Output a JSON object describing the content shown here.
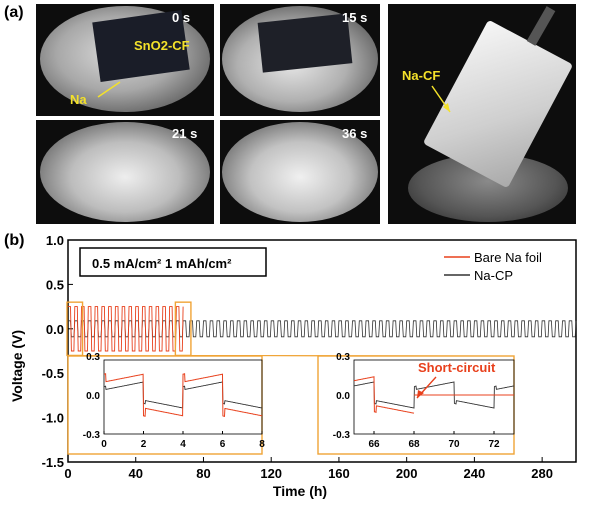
{
  "panel_a": {
    "label": "(a)",
    "photos": [
      {
        "time": "0 s",
        "annotations": [
          "SnO2-CF",
          "Na"
        ]
      },
      {
        "time": "15 s"
      },
      {
        "time": "21 s"
      },
      {
        "time": "36 s"
      },
      {
        "time": "",
        "annotations": [
          "Na-CF"
        ]
      }
    ]
  },
  "panel_b": {
    "label": "(b)",
    "conditions": "0.5 mA/cm²  1 mAh/cm²",
    "inset_annotation": "Short-circuit"
  },
  "colors": {
    "bare": "#e8401c",
    "nacp": "#333333",
    "highlight": "#f0a436"
  },
  "chart_data": {
    "type": "line",
    "xlabel": "Time (h)",
    "ylabel": "Voltage (V)",
    "xlim": [
      0,
      300
    ],
    "ylim": [
      -1.5,
      1.0
    ],
    "xticks": [
      "0",
      "40",
      "80",
      "120",
      "160",
      "200",
      "240",
      "280"
    ],
    "yticks": [
      "1.0",
      "0.5",
      "0.0",
      "-0.5",
      "-1.0",
      "-1.5"
    ],
    "legend_position": "top-right",
    "series": [
      {
        "name": "Bare Na foil",
        "color": "#e8401c",
        "cycle_period_h": 4,
        "amplitude_v": 0.25,
        "end_h": 68
      },
      {
        "name": "Na-CP",
        "color": "#333333",
        "cycle_period_h": 4,
        "amplitude_v": 0.09,
        "end_h": 300
      }
    ],
    "insets": [
      {
        "xlim": [
          0,
          8
        ],
        "ylim": [
          -0.3,
          0.3
        ],
        "xticks": [
          "0",
          "2",
          "4",
          "6",
          "8"
        ],
        "yticks": [
          "0.3",
          "0.0",
          "-0.3"
        ]
      },
      {
        "xlim": [
          65,
          73
        ],
        "ylim": [
          -0.3,
          0.3
        ],
        "xticks": [
          "66",
          "68",
          "70",
          "72"
        ],
        "yticks": [
          "0.3",
          "0.0",
          "-0.3"
        ]
      }
    ]
  }
}
